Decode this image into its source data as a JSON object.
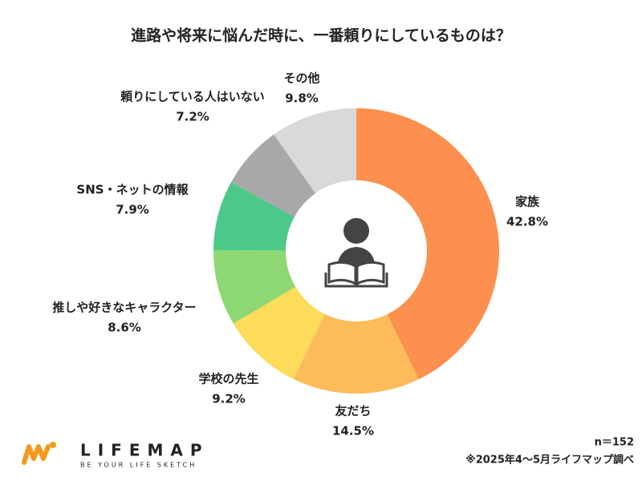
{
  "chart_data": {
    "type": "donut",
    "title": "進路や将来に悩んだ時に、一番頼りにしているものは？",
    "categories": [
      "家族",
      "友だち",
      "学校の先生",
      "推しや好きなキャラクター",
      "SNS・ネットの情報",
      "頼りにしている人はいない",
      "その他"
    ],
    "values": [
      42.8,
      14.5,
      9.2,
      8.6,
      7.9,
      7.2,
      9.8
    ],
    "value_labels": [
      "42.8%",
      "14.5%",
      "9.2%",
      "8.6%",
      "7.9%",
      "7.2%",
      "9.8%"
    ],
    "colors": [
      "#fd8f4f",
      "#fdbb5a",
      "#fddc5a",
      "#8ed873",
      "#4cc98a",
      "#a8a8a8",
      "#d9d9d9"
    ],
    "note": "n＝152",
    "source": "※2025年4〜5月ライフマップ調べ"
  },
  "logo": {
    "name": "LIFEMAP",
    "tagline": "BE YOUR LIFE SKETCH"
  }
}
